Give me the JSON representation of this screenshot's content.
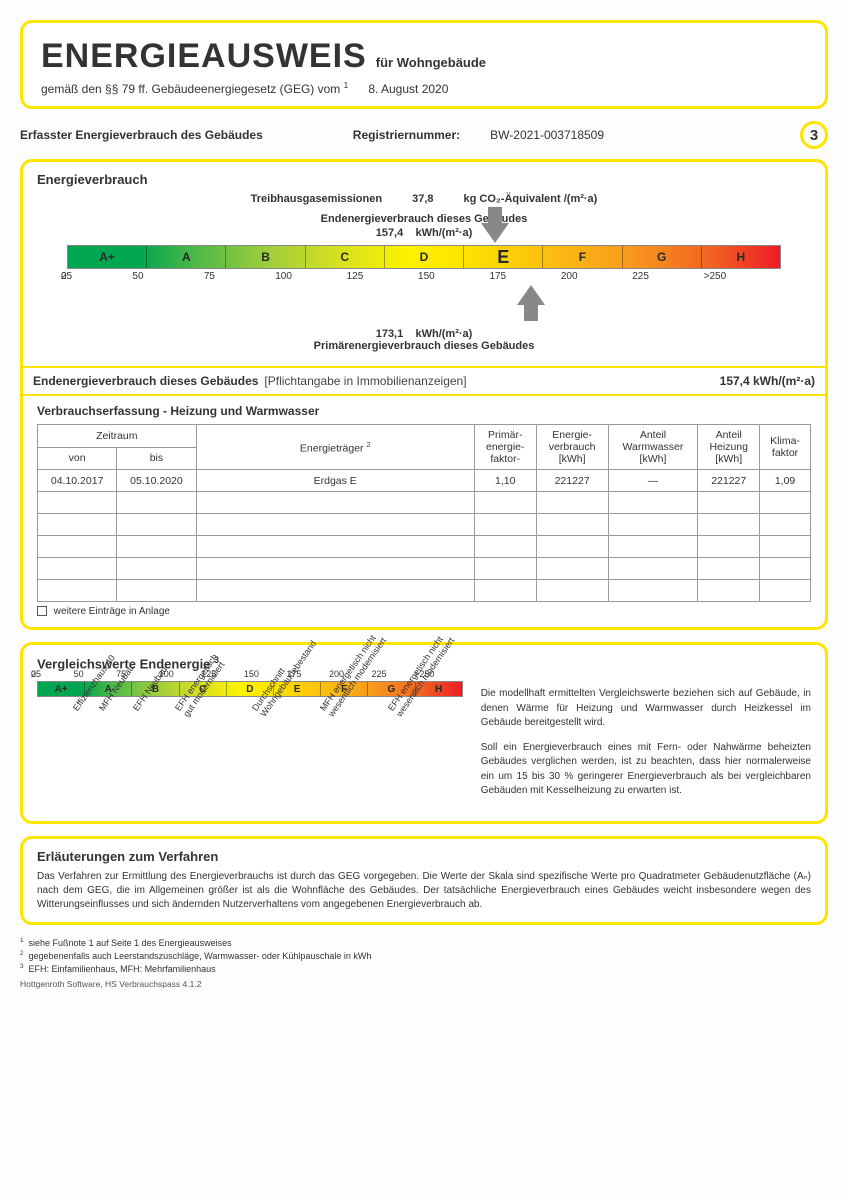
{
  "header": {
    "title": "ENERGIEAUSWEIS",
    "for": "für Wohngebäude",
    "subtitle_prefix": "gemäß den §§ 79 ff. Gebäudeenergiegesetz (GEG) vom",
    "sup": "1",
    "date": "8. August 2020"
  },
  "section_bar": {
    "left": "Erfasster Energieverbrauch des Gebäudes",
    "reg_label": "Registriernummer:",
    "reg_value": "BW-2021-003718509",
    "page": "3"
  },
  "consumption": {
    "title": "Energieverbrauch",
    "ghg_label": "Treibhausgasemissionen",
    "ghg_value": "37,8",
    "ghg_unit": "kg CO₂-Äquivalent /(m²·a)",
    "end_label": "Endenergieverbrauch dieses Gebäudes",
    "end_value": "157,4",
    "end_unit": "kWh/(m²·a)",
    "primary_value": "173,1",
    "primary_unit": "kWh/(m²·a)",
    "primary_label": "Primärenergieverbrauch dieses Gebäudes",
    "scale": {
      "classes": [
        "A+",
        "A",
        "B",
        "C",
        "D",
        "E",
        "F",
        "G",
        "H"
      ],
      "ticks": [
        "0",
        "25",
        "50",
        "75",
        "100",
        "125",
        "150",
        "175",
        "200",
        "225",
        ">250"
      ],
      "gradient_stops": [
        "#00a650",
        "#4fb947",
        "#9ecd3c",
        "#d7e021",
        "#fef200",
        "#fde500",
        "#fdc60b",
        "#f89d1c",
        "#f26522",
        "#ed1c24"
      ],
      "current_class": "E",
      "arrow_down_pct": 60,
      "arrow_up_pct": 65
    }
  },
  "endline": {
    "b1": "Endenergieverbrauch dieses Gebäudes",
    "light": "[Pflichtangabe in Immobilienanzeigen]",
    "value": "157,4 kWh/(m²·a)"
  },
  "capture": {
    "title": "Verbrauchserfassung - Heizung und Warmwasser",
    "columns": {
      "period": "Zeitraum",
      "from": "von",
      "to": "bis",
      "carrier": "Energieträger",
      "carrier_sup": "2",
      "factor": "Primär-\nenergie-\nfaktor-",
      "consumption": "Energie-\nverbrauch\n[kWh]",
      "warmwater": "Anteil\nWarmwasser\n[kWh]",
      "heating": "Anteil\nHeizung\n[kWh]",
      "climate": "Klima-\nfaktor"
    },
    "rows": [
      {
        "from": "04.10.2017",
        "to": "05.10.2020",
        "carrier": "Erdgas E",
        "factor": "1,10",
        "consumption": "221227",
        "warmwater": "—",
        "heating": "221227",
        "climate": "1,09"
      },
      {
        "from": "",
        "to": "",
        "carrier": "",
        "factor": "",
        "consumption": "",
        "warmwater": "",
        "heating": "",
        "climate": ""
      },
      {
        "from": "",
        "to": "",
        "carrier": "",
        "factor": "",
        "consumption": "",
        "warmwater": "",
        "heating": "",
        "climate": ""
      },
      {
        "from": "",
        "to": "",
        "carrier": "",
        "factor": "",
        "consumption": "",
        "warmwater": "",
        "heating": "",
        "climate": ""
      },
      {
        "from": "",
        "to": "",
        "carrier": "",
        "factor": "",
        "consumption": "",
        "warmwater": "",
        "heating": "",
        "climate": ""
      },
      {
        "from": "",
        "to": "",
        "carrier": "",
        "factor": "",
        "consumption": "",
        "warmwater": "",
        "heating": "",
        "climate": ""
      }
    ],
    "more": "weitere Einträge in Anlage"
  },
  "comparison": {
    "title": "Vergleichswerte Endenergie",
    "title_sup": "3",
    "ticks": [
      "0",
      "25",
      "50",
      "75",
      "100",
      "125",
      "150",
      "175",
      "200",
      "225",
      ">250"
    ],
    "classes": [
      "A+",
      "A",
      "B",
      "C",
      "D",
      "E",
      "F",
      "G",
      "H"
    ],
    "labels": [
      {
        "text": "Effizienzhaus 40",
        "pct": 8
      },
      {
        "text": "MFH Neubau",
        "pct": 14
      },
      {
        "text": "EFH Neubau",
        "pct": 22
      },
      {
        "text": "EFH energetisch\ngut modernisiert",
        "pct": 32
      },
      {
        "text": "Durchschnitt\nWohngebäudebestand",
        "pct": 50
      },
      {
        "text": "MFH energetisch nicht\nwesentlich modernisiert",
        "pct": 66
      },
      {
        "text": "EFH energetisch nicht\nwesentlich modernisiert",
        "pct": 82
      }
    ],
    "text1": "Die modellhaft ermittelten Vergleichswerte beziehen sich auf Gebäude, in denen Wärme für Heizung und Warmwasser durch Heizkessel im Gebäude bereitgestellt wird.",
    "text2": "Soll ein Energieverbrauch eines mit Fern- oder Nahwärme beheizten Gebäudes verglichen werden, ist zu beachten, dass hier normalerweise ein um 15 bis 30 % geringerer Energieverbrauch als bei vergleichbaren Gebäuden mit Kesselheizung zu erwarten ist."
  },
  "explanation": {
    "title": "Erläuterungen zum Verfahren",
    "text": "Das Verfahren zur Ermittlung des Energieverbrauchs ist durch das GEG vorgegeben. Die Werte der Skala sind spezifische Werte pro Quadratmeter Gebäudenutzfläche (Aₙ) nach dem GEG, die im Allgemeinen größer ist als die Wohnfläche des Gebäudes. Der tatsächliche Energieverbrauch eines Gebäudes weicht insbesondere wegen des Witterungseinflusses und sich ändernden Nutzerverhaltens vom angegebenen Energieverbrauch ab."
  },
  "footnotes": {
    "f1": "siehe Fußnote 1 auf Seite 1 des Energieausweises",
    "f2": "gegebenenfalls auch Leerstandszuschläge, Warmwasser- oder Kühlpauschale in kWh",
    "f3": "EFH: Einfamilienhaus, MFH: Mehrfamilienhaus"
  },
  "software": "Hottgenroth Software, HS Verbrauchspass 4.1.2"
}
